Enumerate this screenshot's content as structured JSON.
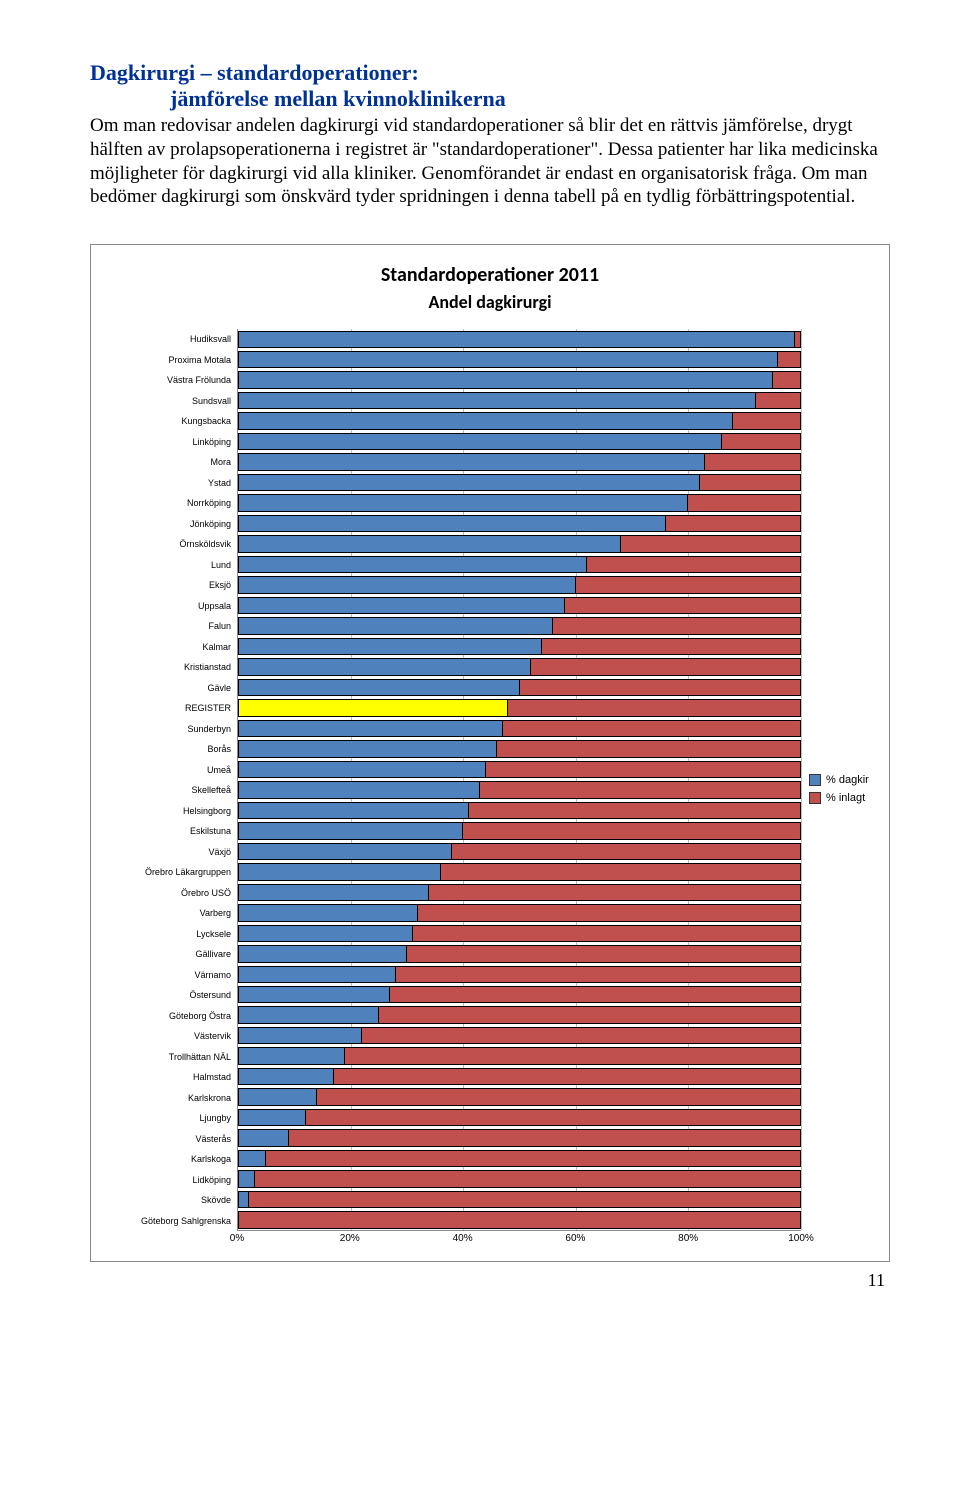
{
  "title_line1": "Dagkirurgi – standardoperationer:",
  "title_line2": "jämförelse mellan kvinnoklinikerna",
  "body": "Om man redovisar andelen dagkirurgi vid standardoperationer så blir det en rättvis jämförelse, drygt hälften av prolapsoperationerna i registret är \"standardoperationer\". Dessa patienter har lika medicinska möjligheter för dagkirurgi vid alla kliniker. Genomförandet är endast en organisatorisk fråga. Om man bedömer dagkirurgi som önskvärd tyder spridningen i denna tabell på en tydlig förbättringspotential.",
  "chart": {
    "title": "Standardoperationer 2011",
    "subtitle": "Andel dagkirurgi",
    "x_ticks": [
      "0%",
      "20%",
      "40%",
      "60%",
      "80%",
      "100%"
    ],
    "x_tick_positions": [
      0,
      20,
      40,
      60,
      80,
      100
    ],
    "colors": {
      "dagkir": "#4f81bd",
      "inlagt": "#c0504d",
      "highlight": "#ffff00",
      "border": "#000000",
      "grid": "#bbbbbb",
      "bg": "#ffffff"
    },
    "legend": [
      {
        "label": "% dagkir",
        "color_key": "dagkir"
      },
      {
        "label": "% inlagt",
        "color_key": "inlagt"
      }
    ],
    "rows": [
      {
        "label": "Hudiksvall",
        "dagkir": 99,
        "highlight": false
      },
      {
        "label": "Proxima Motala",
        "dagkir": 96,
        "highlight": false
      },
      {
        "label": "Västra Frölunda",
        "dagkir": 95,
        "highlight": false
      },
      {
        "label": "Sundsvall",
        "dagkir": 92,
        "highlight": false
      },
      {
        "label": "Kungsbacka",
        "dagkir": 88,
        "highlight": false
      },
      {
        "label": "Linköping",
        "dagkir": 86,
        "highlight": false
      },
      {
        "label": "Mora",
        "dagkir": 83,
        "highlight": false
      },
      {
        "label": "Ystad",
        "dagkir": 82,
        "highlight": false
      },
      {
        "label": "Norrköping",
        "dagkir": 80,
        "highlight": false
      },
      {
        "label": "Jönköping",
        "dagkir": 76,
        "highlight": false
      },
      {
        "label": "Örnsköldsvik",
        "dagkir": 68,
        "highlight": false
      },
      {
        "label": "Lund",
        "dagkir": 62,
        "highlight": false
      },
      {
        "label": "Eksjö",
        "dagkir": 60,
        "highlight": false
      },
      {
        "label": "Uppsala",
        "dagkir": 58,
        "highlight": false
      },
      {
        "label": "Falun",
        "dagkir": 56,
        "highlight": false
      },
      {
        "label": "Kalmar",
        "dagkir": 54,
        "highlight": false
      },
      {
        "label": "Kristianstad",
        "dagkir": 52,
        "highlight": false
      },
      {
        "label": "Gävle",
        "dagkir": 50,
        "highlight": false
      },
      {
        "label": "REGISTER",
        "dagkir": 48,
        "highlight": true
      },
      {
        "label": "Sunderbyn",
        "dagkir": 47,
        "highlight": false
      },
      {
        "label": "Borås",
        "dagkir": 46,
        "highlight": false
      },
      {
        "label": "Umeå",
        "dagkir": 44,
        "highlight": false
      },
      {
        "label": "Skellefteå",
        "dagkir": 43,
        "highlight": false
      },
      {
        "label": "Helsingborg",
        "dagkir": 41,
        "highlight": false
      },
      {
        "label": "Eskilstuna",
        "dagkir": 40,
        "highlight": false
      },
      {
        "label": "Växjö",
        "dagkir": 38,
        "highlight": false
      },
      {
        "label": "Örebro Läkargruppen",
        "dagkir": 36,
        "highlight": false
      },
      {
        "label": "Örebro USÖ",
        "dagkir": 34,
        "highlight": false
      },
      {
        "label": "Varberg",
        "dagkir": 32,
        "highlight": false
      },
      {
        "label": "Lycksele",
        "dagkir": 31,
        "highlight": false
      },
      {
        "label": "Gällivare",
        "dagkir": 30,
        "highlight": false
      },
      {
        "label": "Värnamo",
        "dagkir": 28,
        "highlight": false
      },
      {
        "label": "Östersund",
        "dagkir": 27,
        "highlight": false
      },
      {
        "label": "Göteborg Östra",
        "dagkir": 25,
        "highlight": false
      },
      {
        "label": "Västervik",
        "dagkir": 22,
        "highlight": false
      },
      {
        "label": "Trollhättan NÄL",
        "dagkir": 19,
        "highlight": false
      },
      {
        "label": "Halmstad",
        "dagkir": 17,
        "highlight": false
      },
      {
        "label": "Karlskrona",
        "dagkir": 14,
        "highlight": false
      },
      {
        "label": "Ljungby",
        "dagkir": 12,
        "highlight": false
      },
      {
        "label": "Västerås",
        "dagkir": 9,
        "highlight": false
      },
      {
        "label": "Karlskoga",
        "dagkir": 5,
        "highlight": false
      },
      {
        "label": "Lidköping",
        "dagkir": 3,
        "highlight": false
      },
      {
        "label": "Skövde",
        "dagkir": 2,
        "highlight": false
      },
      {
        "label": "Göteborg Sahlgrenska",
        "dagkir": 0,
        "highlight": false
      }
    ]
  },
  "page_number": "11"
}
